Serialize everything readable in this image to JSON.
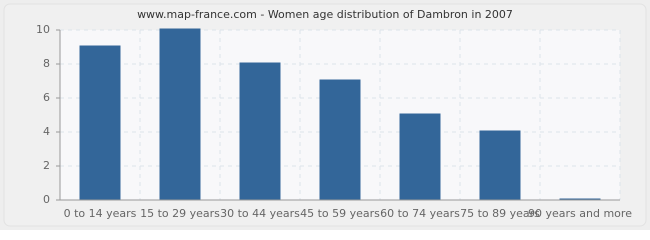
{
  "chart_data": {
    "type": "bar",
    "title": "www.map-france.com - Women age distribution of Dambron in 2007",
    "categories": [
      "0 to 14 years",
      "15 to 29 years",
      "30 to 44 years",
      "45 to 59 years",
      "60 to 74 years",
      "75 to 89 years",
      "90 years and more"
    ],
    "values": [
      9,
      10,
      8,
      7,
      5,
      4,
      0
    ],
    "color": "#336699",
    "ylim": [
      0,
      10
    ],
    "yticks": [
      0,
      2,
      4,
      6,
      8,
      10
    ],
    "grid": true
  }
}
